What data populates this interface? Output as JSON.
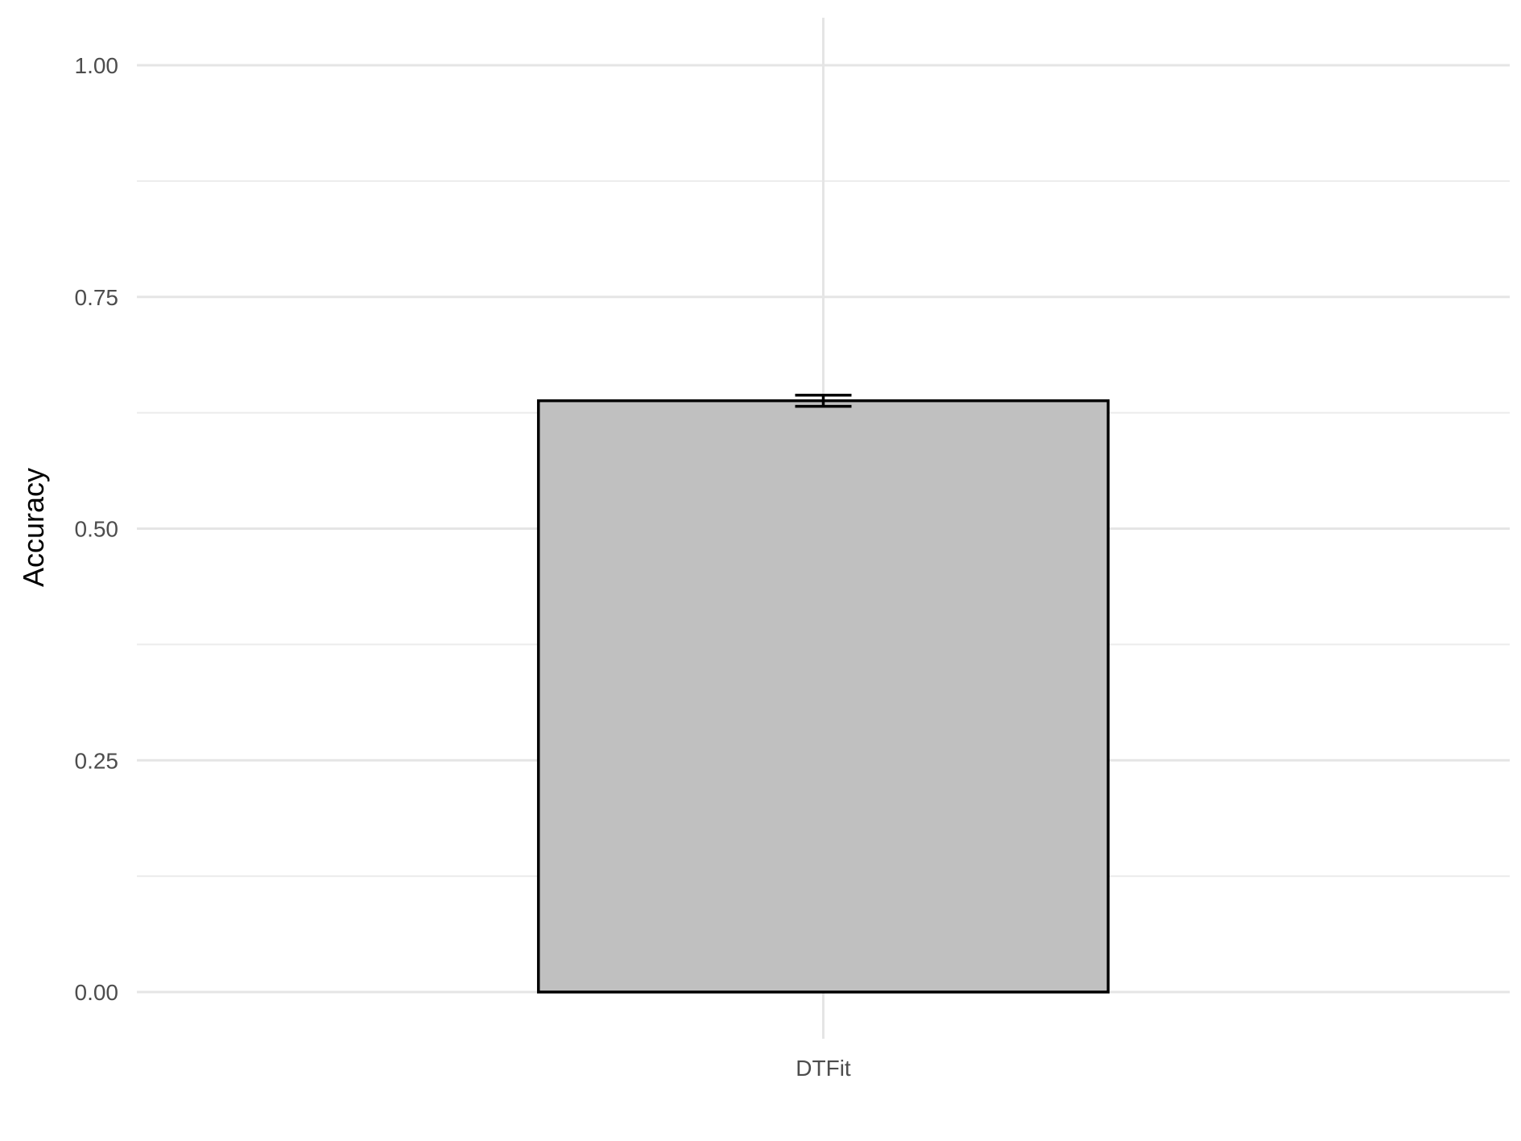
{
  "chart_data": {
    "type": "bar",
    "categories": [
      "DTFit"
    ],
    "values": [
      0.638
    ],
    "error_bars": [
      {
        "low": 0.632,
        "high": 0.644
      }
    ],
    "title": "",
    "xlabel": "",
    "ylabel": "Accuracy",
    "ylim": [
      0,
      1.0
    ],
    "y_major_ticks": [
      0.0,
      0.25,
      0.5,
      0.75,
      1.0
    ],
    "y_tick_labels": [
      "0.00",
      "0.25",
      "0.50",
      "0.75",
      "1.00"
    ],
    "y_minor_ticks": [
      0.125,
      0.375,
      0.625,
      0.875
    ],
    "grid": true,
    "legend": "none",
    "colors": {
      "bar_fill": "#c0c0c0",
      "bar_stroke": "#000000",
      "grid": "#e5e5e5"
    }
  }
}
